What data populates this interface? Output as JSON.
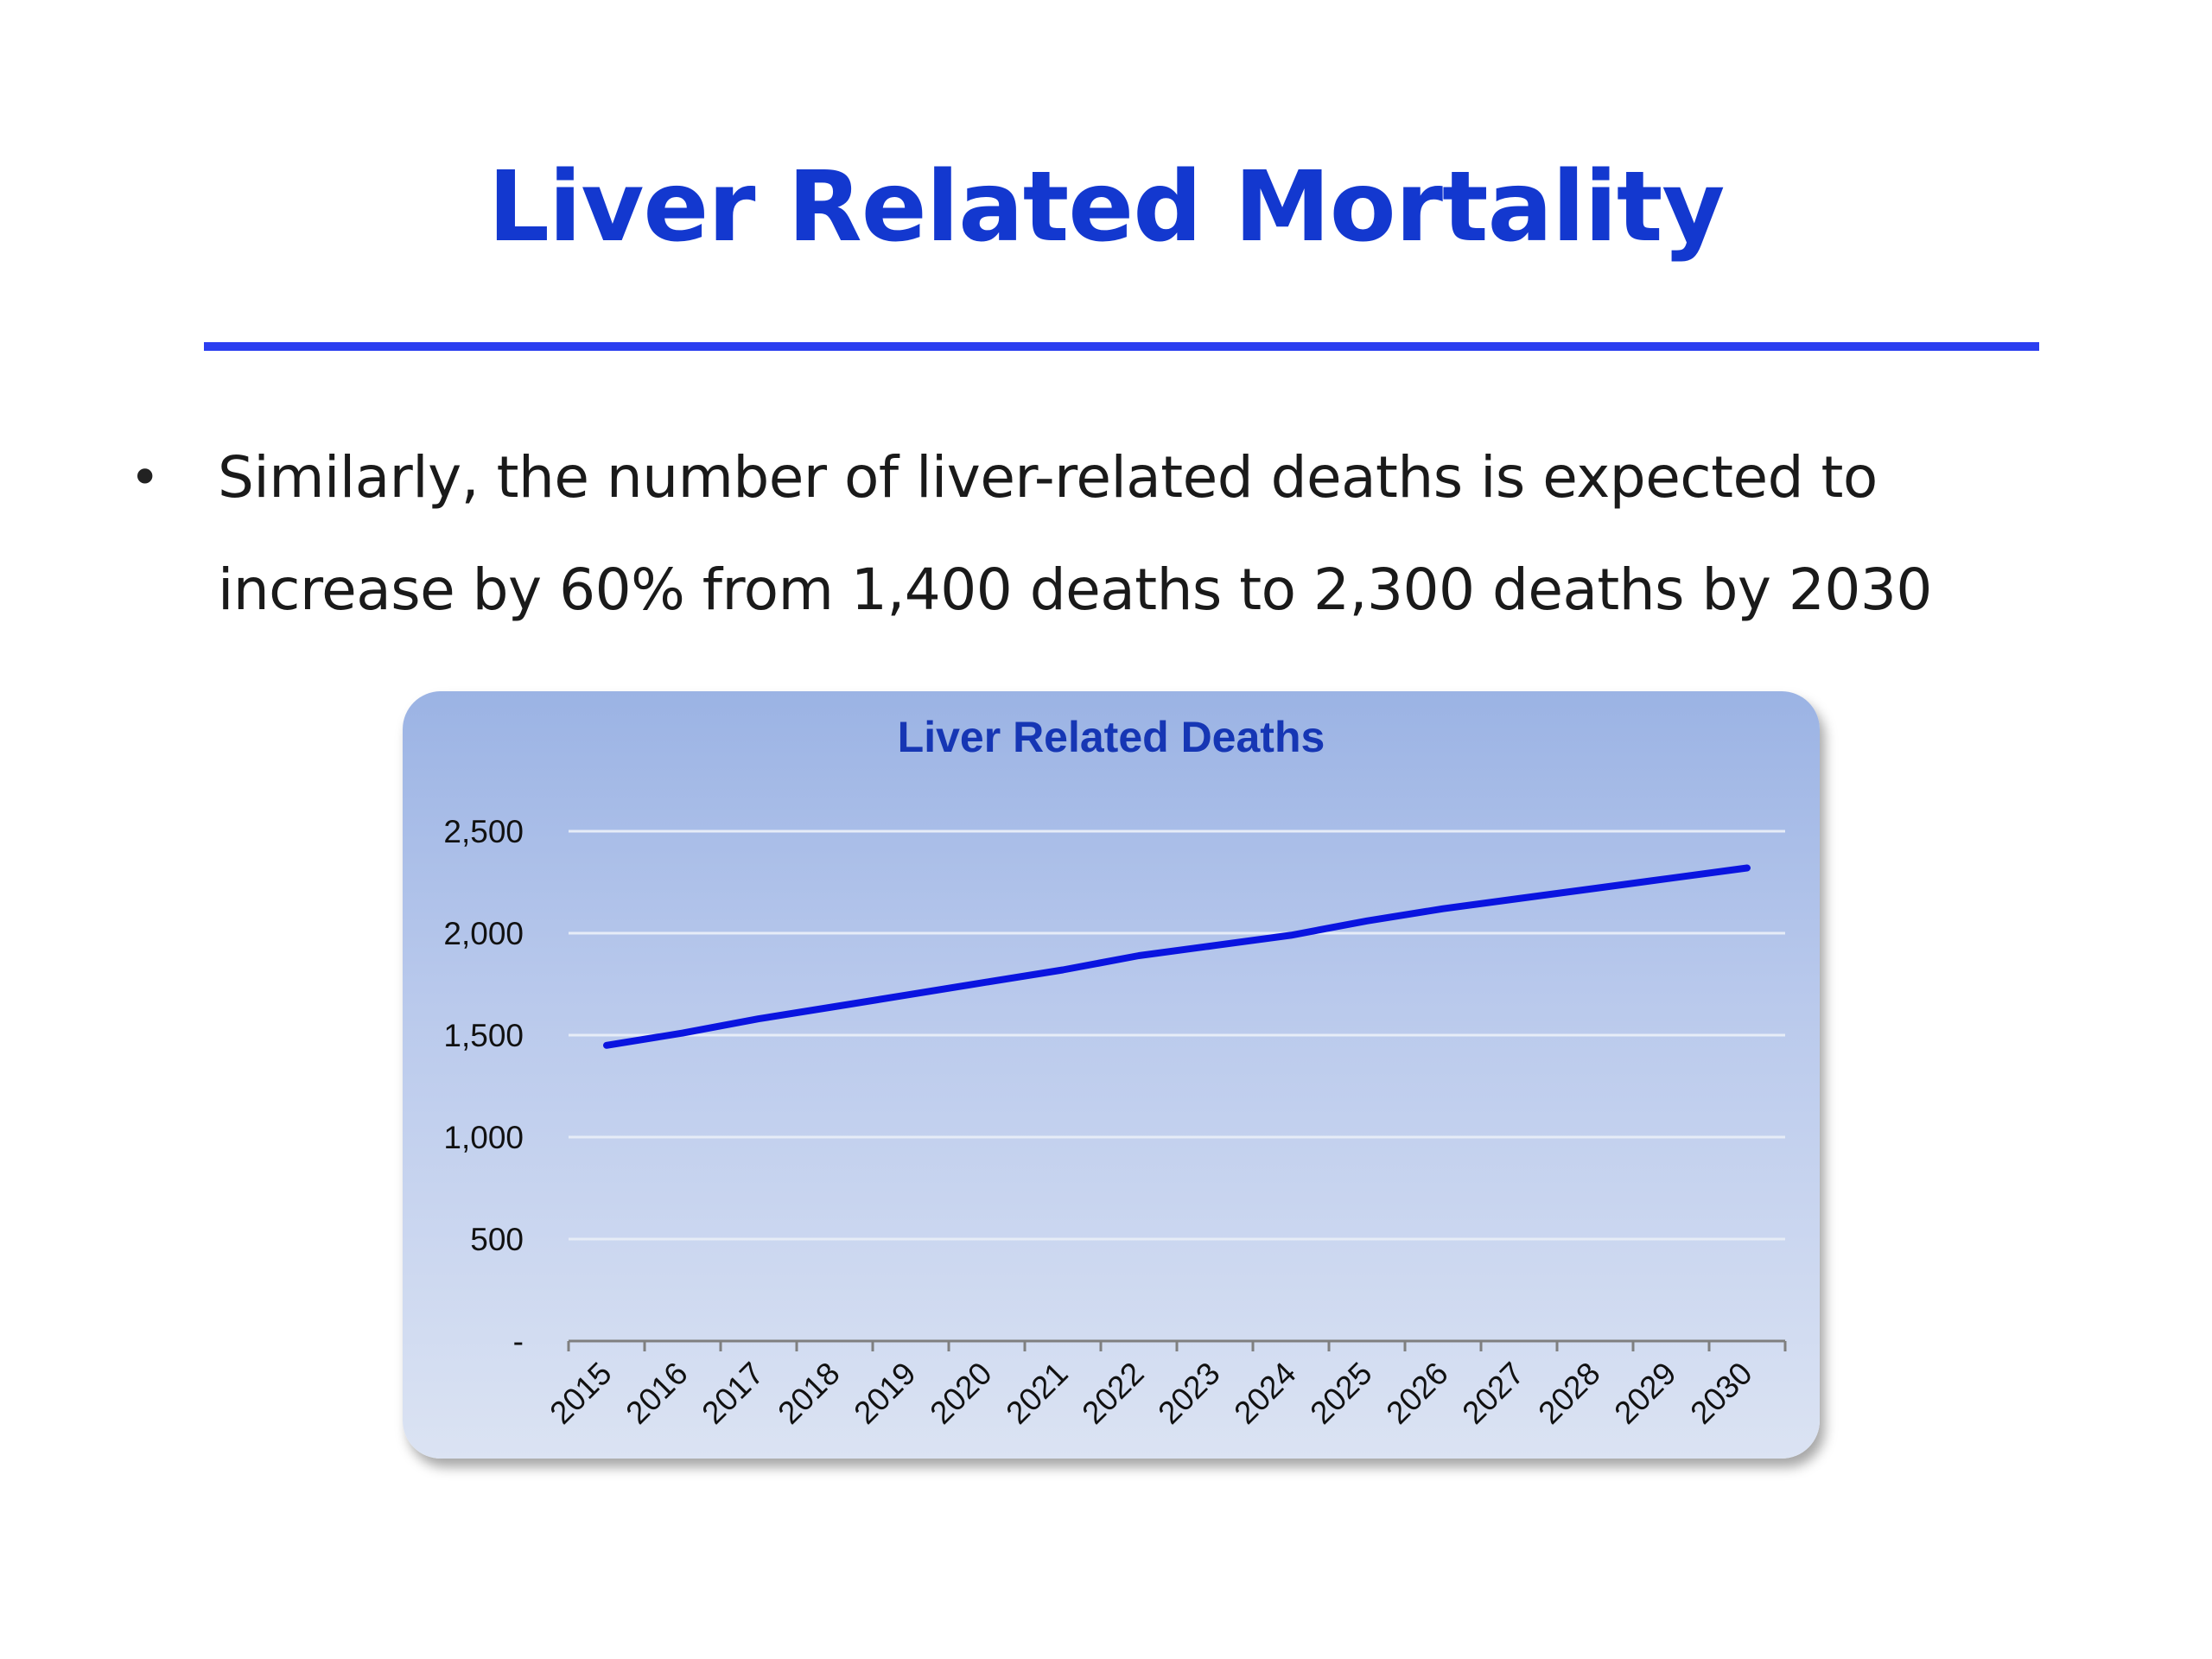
{
  "slide": {
    "title": "Liver Related Mortality",
    "bullet_marker": "•",
    "bullet_text": "Similarly, the number of liver-related deaths is expected to increase by 60% from 1,400 deaths to 2,300 deaths by 2030"
  },
  "colors": {
    "title": "#1338cf",
    "rule": "#2b3ef0",
    "series_line": "#0a14e0",
    "chart_title": "#1636b4"
  },
  "chart_data": {
    "type": "line",
    "title": "Liver Related Deaths",
    "xlabel": "",
    "ylabel": "",
    "x": [
      "2015",
      "2016",
      "2017",
      "2018",
      "2019",
      "2020",
      "2021",
      "2022",
      "2023",
      "2024",
      "2025",
      "2026",
      "2027",
      "2028",
      "2029",
      "2030"
    ],
    "series": [
      {
        "values": [
          1450,
          1510,
          1580,
          1640,
          1700,
          1760,
          1820,
          1890,
          1940,
          1990,
          2060,
          2120,
          2170,
          2220,
          2270,
          2320
        ]
      }
    ],
    "ylim": [
      0,
      2500
    ],
    "yticks": [
      0,
      500,
      1000,
      1500,
      2000,
      2500
    ],
    "ytick_labels": [
      "-",
      "500",
      "1,000",
      "1,500",
      "2,000",
      "2,500"
    ],
    "grid": true,
    "legend": "none"
  }
}
